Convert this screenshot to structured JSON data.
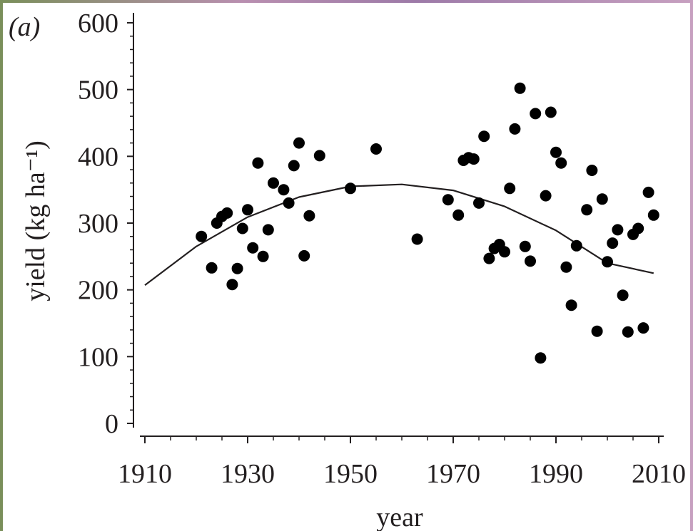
{
  "chart_data": {
    "type": "scatter",
    "panel_label": "(a)",
    "xlabel": "year",
    "ylabel": "yield (kg ha⁻¹)",
    "xlim": [
      1910,
      2010
    ],
    "ylim": [
      0,
      600
    ],
    "xticks": [
      1910,
      1930,
      1950,
      1970,
      1990,
      2010
    ],
    "yticks": [
      0,
      100,
      200,
      300,
      400,
      500,
      600
    ],
    "grid": false,
    "series": [
      {
        "kind": "points",
        "points": [
          [
            1921,
            280
          ],
          [
            1923,
            233
          ],
          [
            1924,
            300
          ],
          [
            1925,
            310
          ],
          [
            1926,
            315
          ],
          [
            1927,
            208
          ],
          [
            1928,
            232
          ],
          [
            1929,
            292
          ],
          [
            1930,
            320
          ],
          [
            1931,
            263
          ],
          [
            1932,
            390
          ],
          [
            1933,
            250
          ],
          [
            1934,
            290
          ],
          [
            1935,
            360
          ],
          [
            1937,
            350
          ],
          [
            1938,
            330
          ],
          [
            1939,
            386
          ],
          [
            1940,
            420
          ],
          [
            1941,
            251
          ],
          [
            1942,
            311
          ],
          [
            1944,
            401
          ],
          [
            1950,
            352
          ],
          [
            1955,
            411
          ],
          [
            1963,
            276
          ],
          [
            1969,
            335
          ],
          [
            1971,
            312
          ],
          [
            1972,
            394
          ],
          [
            1973,
            398
          ],
          [
            1974,
            396
          ],
          [
            1975,
            330
          ],
          [
            1976,
            430
          ],
          [
            1977,
            247
          ],
          [
            1978,
            262
          ],
          [
            1979,
            268
          ],
          [
            1980,
            257
          ],
          [
            1981,
            352
          ],
          [
            1982,
            441
          ],
          [
            1983,
            502
          ],
          [
            1984,
            265
          ],
          [
            1985,
            243
          ],
          [
            1986,
            464
          ],
          [
            1987,
            98
          ],
          [
            1988,
            341
          ],
          [
            1989,
            466
          ],
          [
            1990,
            406
          ],
          [
            1991,
            390
          ],
          [
            1992,
            234
          ],
          [
            1993,
            177
          ],
          [
            1994,
            266
          ],
          [
            1996,
            320
          ],
          [
            1997,
            379
          ],
          [
            1998,
            138
          ],
          [
            1999,
            336
          ],
          [
            2000,
            242
          ],
          [
            2001,
            270
          ],
          [
            2002,
            290
          ],
          [
            2003,
            192
          ],
          [
            2004,
            137
          ],
          [
            2005,
            283
          ],
          [
            2006,
            292
          ],
          [
            2007,
            143
          ],
          [
            2008,
            346
          ],
          [
            2009,
            312
          ]
        ]
      },
      {
        "kind": "fitted-curve",
        "x": [
          1910,
          1920,
          1930,
          1940,
          1950,
          1960,
          1970,
          1980,
          1990,
          2000,
          2009
        ],
        "y": [
          207,
          265,
          309,
          339,
          355,
          358,
          349,
          325,
          289,
          240,
          225
        ]
      }
    ]
  }
}
